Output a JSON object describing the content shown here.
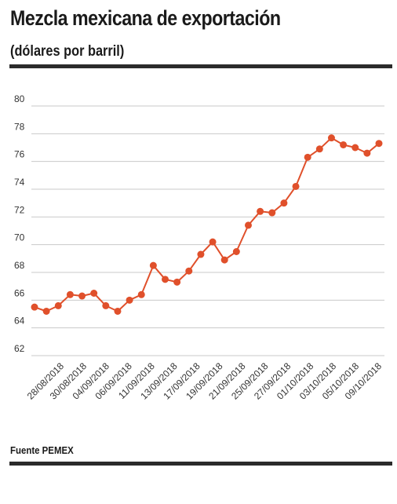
{
  "header": {
    "title": "Mezcla mexicana de exportación",
    "subtitle": "(dólares por barril)"
  },
  "footer": {
    "source": "Fuente PEMEX"
  },
  "chart_data": {
    "type": "line",
    "title": "Mezcla mexicana de exportación",
    "subtitle": "(dólares por barril)",
    "xlabel": "",
    "ylabel": "",
    "ylim": [
      62,
      80
    ],
    "yticks": [
      62,
      64,
      66,
      68,
      70,
      72,
      74,
      76,
      78,
      80
    ],
    "grid": true,
    "legend": "none",
    "line_color": "#e0502b",
    "x_tick_labels": [
      "28/08/2018",
      "30/08/2018",
      "04/09/2018",
      "06/09/2018",
      "11/09/2018",
      "13/09/2018",
      "17/09/2018",
      "19/09/2018",
      "21/09/2018",
      "25/09/2018",
      "27/09/2018",
      "01/10/2018",
      "03/10/2018",
      "05/10/2018",
      "09/10/2018"
    ],
    "series": [
      {
        "values": [
          65.5,
          65.2,
          65.6,
          66.4,
          66.3,
          66.5,
          65.6,
          65.2,
          66.0,
          66.4,
          68.5,
          67.5,
          67.3,
          68.1,
          69.3,
          70.2,
          68.9,
          69.5,
          71.4,
          72.4,
          72.3,
          73.0,
          74.2,
          76.3,
          76.9,
          77.7,
          77.2,
          77.0,
          76.6,
          77.3
        ]
      }
    ]
  }
}
